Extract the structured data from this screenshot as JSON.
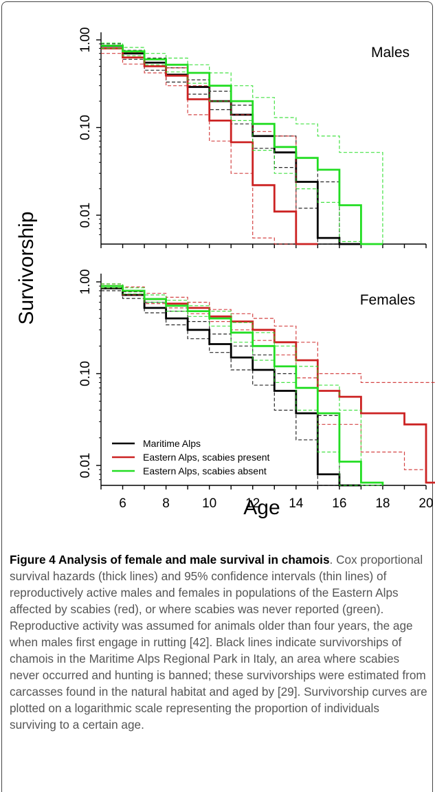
{
  "figure": {
    "ylabel": "Survivorship",
    "xlabel": "Age",
    "legend": [
      {
        "label": "Maritime Alps",
        "color": "#000000"
      },
      {
        "label": "Eastern Alps, scabies present",
        "color": "#cc2222"
      },
      {
        "label": "Eastern Alps, scabies absent",
        "color": "#22dd22"
      }
    ]
  },
  "caption": {
    "title": "Figure 4 Analysis of female and male survival in chamois",
    "text": ". Cox proportional survival hazards (thick lines) and 95% confidence intervals (thin lines) of reproductively active males and females in populations of the Eastern Alps affected by scabies (red), or where scabies was never reported (green). Reproductive activity was assumed for animals older than four years, the age when males first engage in rutting [42]. Black lines indicate survivorships of chamois in the Maritime Alps Regional Park in Italy, an area where scabies never occurred and hunting is banned; these survivorships were estimated from carcasses found in the natural habitat and aged by [29]. Survivorship curves are plotted on a logarithmic scale representing the proportion of individuals surviving to a certain age."
  },
  "chart_data": [
    {
      "type": "line",
      "title": "Males",
      "step": true,
      "ylog": true,
      "ylim": [
        0.005,
        1.2
      ],
      "xlim": [
        5,
        20
      ],
      "yticks": [
        "1.00",
        "0.10",
        "0.01"
      ],
      "ytick_values": [
        1,
        0.1,
        0.01
      ],
      "series": [
        {
          "name": "Maritime Alps",
          "color": "#000000",
          "x": [
            5,
            6,
            7,
            8,
            9,
            10,
            11,
            12,
            13,
            14,
            15,
            16
          ],
          "mean": [
            0.85,
            0.7,
            0.55,
            0.4,
            0.29,
            0.2,
            0.14,
            0.08,
            0.052,
            0.024,
            0.0055,
            0.0045
          ],
          "lower": [
            0.8,
            0.6,
            0.45,
            0.33,
            0.24,
            0.16,
            0.11,
            0.058,
            0.035,
            0.012,
            0.0035,
            0.0035
          ],
          "upper": [
            0.9,
            0.76,
            0.62,
            0.48,
            0.35,
            0.26,
            0.18,
            0.11,
            0.08,
            0.045,
            0.024,
            0.0045
          ]
        },
        {
          "name": "Eastern Alps, scabies present",
          "color": "#cc2222",
          "x": [
            5,
            6,
            7,
            8,
            9,
            10,
            11,
            12,
            13,
            14
          ],
          "mean": [
            0.8,
            0.63,
            0.5,
            0.39,
            0.21,
            0.12,
            0.068,
            0.022,
            0.011,
            0.0045
          ],
          "lower": [
            0.7,
            0.53,
            0.42,
            0.3,
            0.14,
            0.07,
            0.03,
            0.0055,
            0.0045,
            0.0045
          ],
          "upper": [
            0.86,
            0.72,
            0.6,
            0.48,
            0.3,
            0.2,
            0.14,
            0.09,
            0.08,
            0.0045
          ]
        },
        {
          "name": "Eastern Alps, scabies absent",
          "color": "#22dd22",
          "x": [
            5,
            6,
            7,
            8,
            9,
            10,
            11,
            12,
            13,
            14,
            15,
            16,
            17
          ],
          "mean": [
            0.86,
            0.74,
            0.6,
            0.52,
            0.42,
            0.3,
            0.2,
            0.11,
            0.06,
            0.045,
            0.033,
            0.013,
            0.0045
          ],
          "lower": [
            0.8,
            0.66,
            0.52,
            0.43,
            0.32,
            0.2,
            0.12,
            0.055,
            0.03,
            0.02,
            0.014,
            0.005,
            0.0045
          ],
          "upper": [
            0.92,
            0.82,
            0.7,
            0.62,
            0.52,
            0.42,
            0.3,
            0.22,
            0.13,
            0.11,
            0.08,
            0.052,
            0.052
          ]
        }
      ]
    },
    {
      "type": "line",
      "title": "Females",
      "step": true,
      "ylog": true,
      "ylim": [
        0.005,
        1.2
      ],
      "xlim": [
        5,
        20
      ],
      "xticks": [
        6,
        8,
        10,
        12,
        14,
        16,
        18,
        20
      ],
      "yticks": [
        "1.00",
        "0.10",
        "0.01"
      ],
      "ytick_values": [
        1,
        0.1,
        0.01
      ],
      "series": [
        {
          "name": "Maritime Alps",
          "color": "#000000",
          "x": [
            5,
            6,
            7,
            8,
            9,
            10,
            11,
            12,
            13,
            14,
            15,
            16
          ],
          "mean": [
            0.85,
            0.72,
            0.52,
            0.4,
            0.3,
            0.21,
            0.15,
            0.11,
            0.065,
            0.037,
            0.008,
            0.0045
          ],
          "lower": [
            0.8,
            0.66,
            0.46,
            0.34,
            0.24,
            0.17,
            0.11,
            0.075,
            0.04,
            0.019,
            0.0045,
            0.0045
          ],
          "upper": [
            0.9,
            0.78,
            0.6,
            0.48,
            0.37,
            0.27,
            0.2,
            0.16,
            0.1,
            0.07,
            0.035,
            0.0045
          ]
        },
        {
          "name": "Eastern Alps, scabies present",
          "color": "#cc2222",
          "x": [
            5,
            6,
            7,
            8,
            9,
            10,
            11,
            12,
            13,
            14,
            15,
            16,
            17,
            18,
            19,
            20
          ],
          "mean": [
            0.9,
            0.8,
            0.65,
            0.58,
            0.52,
            0.42,
            0.37,
            0.3,
            0.22,
            0.14,
            0.065,
            0.056,
            0.037,
            0.037,
            0.028,
            0.0065
          ],
          "lower": [
            0.86,
            0.72,
            0.58,
            0.52,
            0.45,
            0.37,
            0.3,
            0.23,
            0.16,
            0.09,
            0.028,
            0.028,
            0.014,
            0.014,
            0.009,
            0.0065
          ],
          "upper": [
            0.95,
            0.88,
            0.75,
            0.68,
            0.6,
            0.5,
            0.45,
            0.4,
            0.33,
            0.22,
            0.1,
            0.1,
            0.08,
            0.08,
            0.08,
            0.08
          ]
        },
        {
          "name": "Eastern Alps, scabies absent",
          "color": "#22dd22",
          "x": [
            5,
            6,
            7,
            8,
            9,
            10,
            11,
            12,
            13,
            14,
            15,
            16,
            17
          ],
          "mean": [
            0.9,
            0.8,
            0.65,
            0.55,
            0.48,
            0.4,
            0.28,
            0.2,
            0.12,
            0.07,
            0.037,
            0.011,
            0.0065
          ],
          "lower": [
            0.86,
            0.74,
            0.6,
            0.48,
            0.42,
            0.33,
            0.22,
            0.14,
            0.08,
            0.04,
            0.014,
            0.0045,
            0.0045
          ],
          "upper": [
            0.95,
            0.86,
            0.72,
            0.63,
            0.55,
            0.48,
            0.36,
            0.28,
            0.2,
            0.12,
            0.075,
            0.04,
            0.0065
          ]
        }
      ]
    }
  ]
}
